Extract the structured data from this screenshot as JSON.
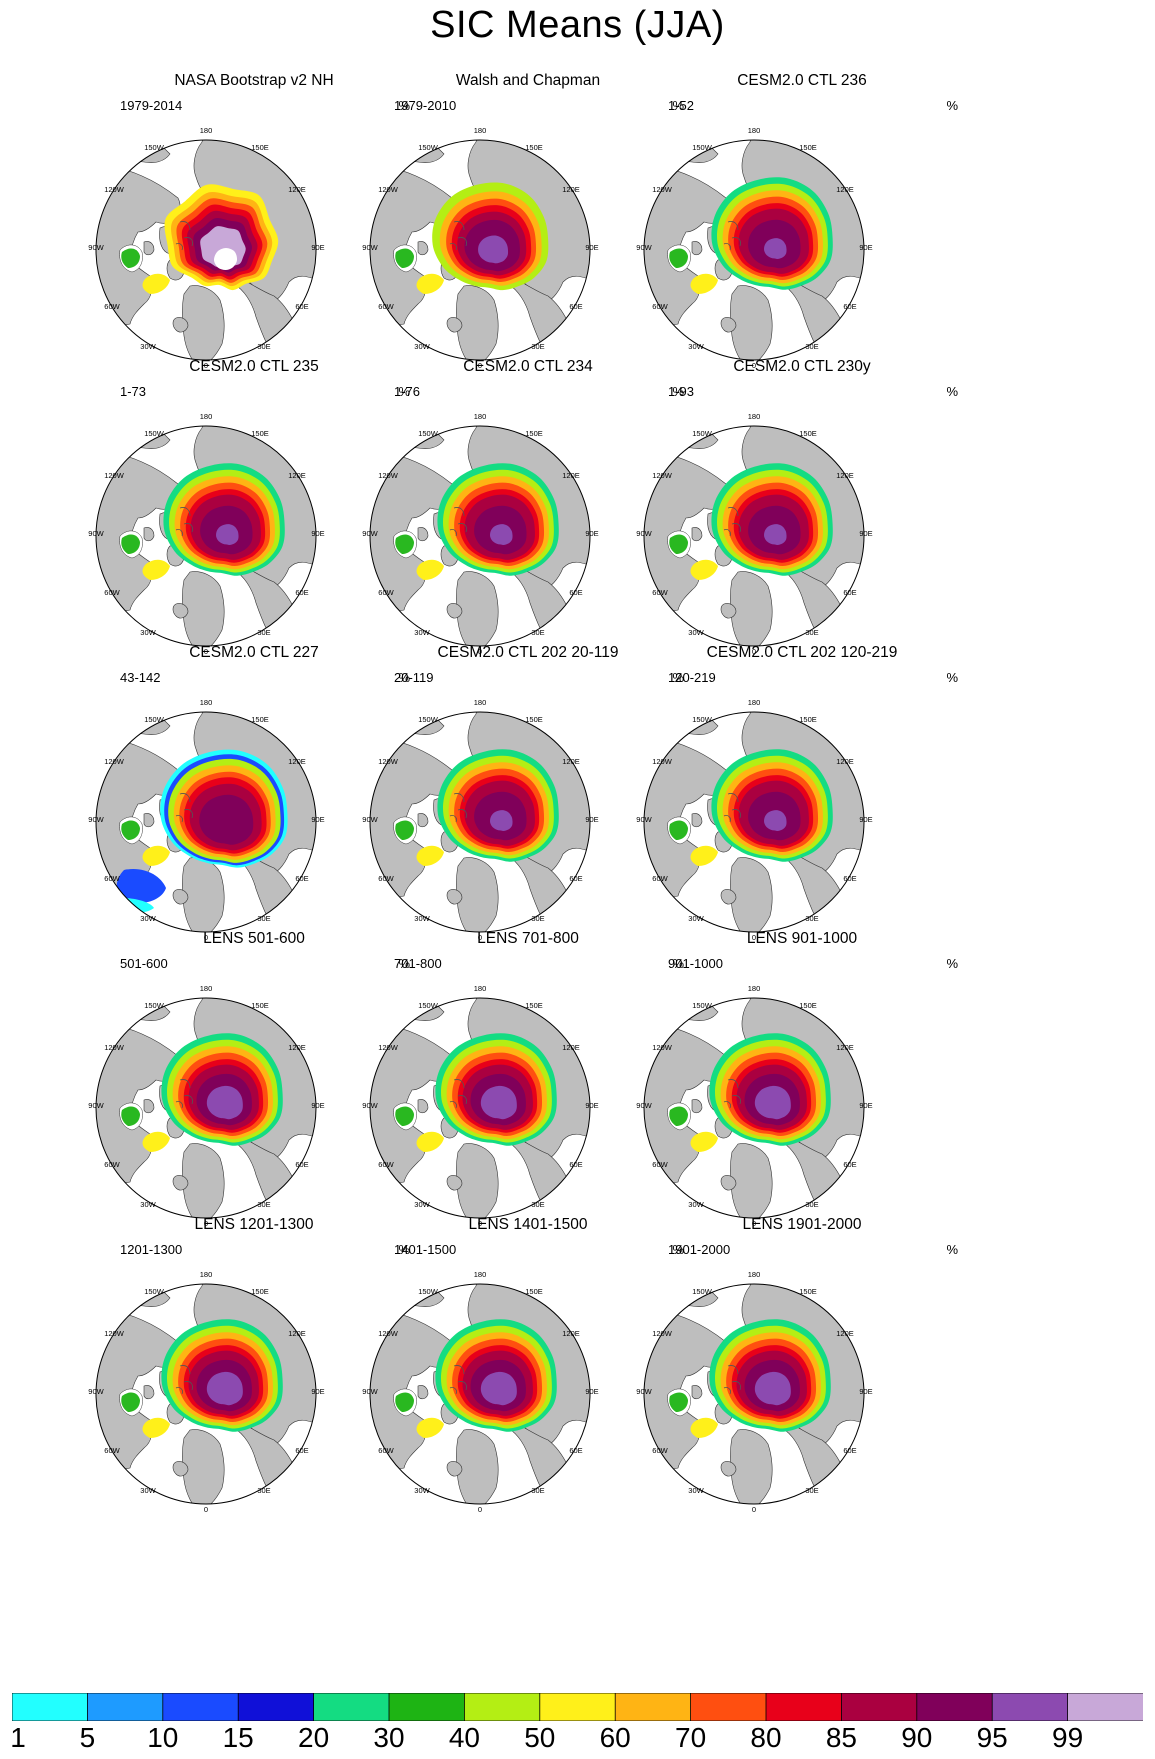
{
  "title": "SIC Means (JJA)",
  "unit_label": "%",
  "longitude_labels": [
    "180",
    "150E",
    "120E",
    "90E",
    "60E",
    "30E",
    "0",
    "30W",
    "60W",
    "90W",
    "120W",
    "150W"
  ],
  "colorbar": {
    "colors": [
      "#22ffff",
      "#1e9bff",
      "#1a4bff",
      "#1010d8",
      "#14dc82",
      "#1eb414",
      "#b4ee14",
      "#fff01a",
      "#ffb414",
      "#ff4f10",
      "#e8001a",
      "#aa0040",
      "#80005a",
      "#8c4ab0",
      "#c8a8d8"
    ],
    "tick_labels": [
      "1",
      "5",
      "10",
      "15",
      "20",
      "30",
      "40",
      "50",
      "60",
      "70",
      "80",
      "85",
      "90",
      "95",
      "99"
    ]
  },
  "panels": [
    {
      "title": "NASA Bootstrap v2 NH",
      "period": "1979-2014",
      "pattern": "obs"
    },
    {
      "title": "Walsh and Chapman",
      "period": "1979-2010",
      "pattern": "wc"
    },
    {
      "title": "CESM2.0 CTL 236",
      "period": "1-52",
      "pattern": "model"
    },
    {
      "title": "CESM2.0 CTL 235",
      "period": "1-73",
      "pattern": "model"
    },
    {
      "title": "CESM2.0 CTL 234",
      "period": "1-76",
      "pattern": "model"
    },
    {
      "title": "CESM2.0 CTL 230y",
      "period": "1-93",
      "pattern": "model"
    },
    {
      "title": "CESM2.0 CTL 227",
      "period": "43-142",
      "pattern": "wide"
    },
    {
      "title": "CESM2.0 CTL 202 20-119",
      "period": "20-119",
      "pattern": "model"
    },
    {
      "title": "CESM2.0 CTL 202 120-219",
      "period": "120-219",
      "pattern": "model"
    },
    {
      "title": "LENS 501-600",
      "period": "501-600",
      "pattern": "lens"
    },
    {
      "title": "LENS 701-800",
      "period": "701-800",
      "pattern": "lens"
    },
    {
      "title": "LENS 901-1000",
      "period": "901-1000",
      "pattern": "lens"
    },
    {
      "title": "LENS 1201-1300",
      "period": "1201-1300",
      "pattern": "lens"
    },
    {
      "title": "LENS 1401-1500",
      "period": "1401-1500",
      "pattern": "lens"
    },
    {
      "title": "LENS 1901-2000",
      "period": "1901-2000",
      "pattern": "lens"
    }
  ]
}
